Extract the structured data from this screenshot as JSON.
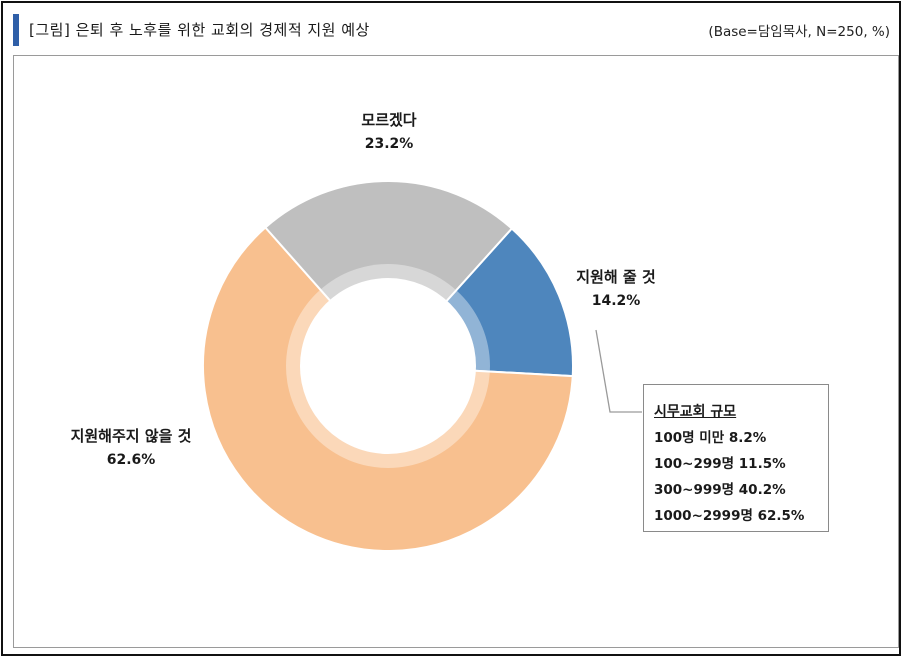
{
  "figure": {
    "title": "[그림] 은퇴 후 노후를 위한 교회의 경제적 지원 예상",
    "base_note": "(Base=담임목사,  N=250,  %)"
  },
  "chart_data": {
    "type": "pie",
    "title": "",
    "categories": [
      "지원해 줄 것",
      "지원해주지 않을 것",
      "모르겠다"
    ],
    "values": [
      14.2,
      62.6,
      23.2
    ],
    "value_labels": [
      "14.2%",
      "62.6%",
      "23.2%"
    ],
    "colors": [
      "#4e86bd",
      "#f8c08f",
      "#bfbfbf"
    ],
    "donut": true,
    "start_angle_deg": 42,
    "legend": "none"
  },
  "church_size_box": {
    "header": "시무교회 규모",
    "rows": [
      "100명 미만 8.2%",
      "100~299명 11.5%",
      "300~999명 40.2%",
      "1000~2999명 62.5%"
    ]
  }
}
